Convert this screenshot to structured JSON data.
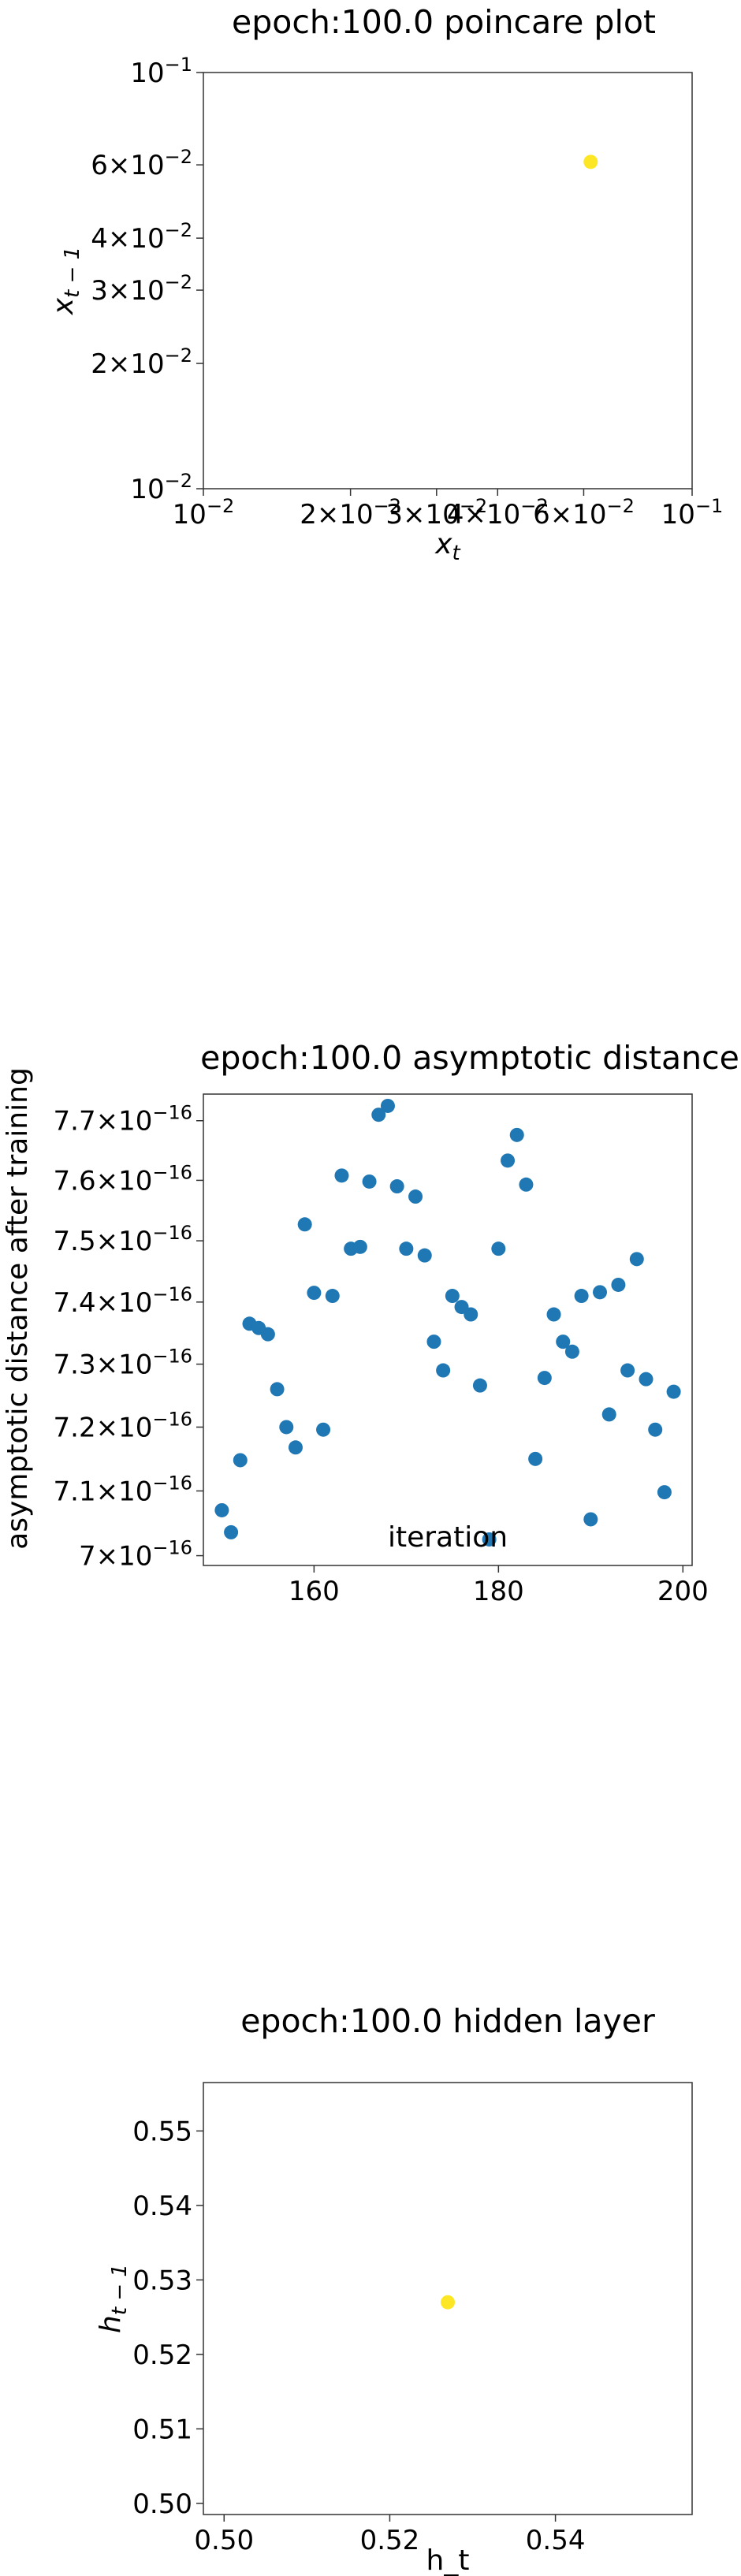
{
  "chart_data": [
    {
      "type": "scatter",
      "title": "epoch:100.0 poincare plot",
      "xlabel": "x_t",
      "ylabel": "x_{t-1}",
      "xscale": "log",
      "yscale": "log",
      "xlim": [
        0.01,
        0.1
      ],
      "ylim": [
        0.01,
        0.1
      ],
      "xticks": [
        {
          "v": 0.01,
          "base": "10",
          "exp": "−2"
        },
        {
          "v": 0.02,
          "base": "2×10",
          "exp": "−2"
        },
        {
          "v": 0.03,
          "base": "3×10",
          "exp": "−2"
        },
        {
          "v": 0.04,
          "base": "4×10",
          "exp": "−2"
        },
        {
          "v": 0.06,
          "base": "6×10",
          "exp": "−2"
        },
        {
          "v": 0.1,
          "base": "10",
          "exp": "−1"
        }
      ],
      "yticks": [
        {
          "v": 0.01,
          "base": "10",
          "exp": "−2"
        },
        {
          "v": 0.02,
          "base": "2×10",
          "exp": "−2"
        },
        {
          "v": 0.03,
          "base": "3×10",
          "exp": "−2"
        },
        {
          "v": 0.04,
          "base": "4×10",
          "exp": "−2"
        },
        {
          "v": 0.06,
          "base": "6×10",
          "exp": "−2"
        },
        {
          "v": 0.1,
          "base": "10",
          "exp": "−1"
        }
      ],
      "points": [
        {
          "x": 0.062,
          "y": 0.061
        }
      ],
      "point_color": "#fde725"
    },
    {
      "type": "scatter",
      "title": "epoch:100.0 asymptotic distance",
      "xlabel": "iteration",
      "ylabel": "asymptotic distance after training",
      "xscale": "linear",
      "yscale": "log",
      "xlim": [
        148,
        201
      ],
      "ylim": [
        6.985e-16,
        7.745e-16
      ],
      "xticks": [
        {
          "v": 160,
          "label": "160"
        },
        {
          "v": 180,
          "label": "180"
        },
        {
          "v": 200,
          "label": "200"
        }
      ],
      "yticks": [
        {
          "v": 7e-16,
          "base": "7×10",
          "exp": "−16"
        },
        {
          "v": 7.1e-16,
          "base": "7.1×10",
          "exp": "−16"
        },
        {
          "v": 7.2e-16,
          "base": "7.2×10",
          "exp": "−16"
        },
        {
          "v": 7.3e-16,
          "base": "7.3×10",
          "exp": "−16"
        },
        {
          "v": 7.4e-16,
          "base": "7.4×10",
          "exp": "−16"
        },
        {
          "v": 7.5e-16,
          "base": "7.5×10",
          "exp": "−16"
        },
        {
          "v": 7.6e-16,
          "base": "7.6×10",
          "exp": "−16"
        },
        {
          "v": 7.7e-16,
          "base": "7.7×10",
          "exp": "−16"
        }
      ],
      "x": [
        150,
        151,
        152,
        153,
        154,
        155,
        156,
        157,
        158,
        159,
        160,
        161,
        162,
        163,
        164,
        165,
        166,
        167,
        168,
        169,
        170,
        171,
        172,
        173,
        174,
        175,
        176,
        177,
        178,
        179,
        180,
        181,
        182,
        183,
        184,
        185,
        186,
        187,
        188,
        189,
        190,
        191,
        192,
        193,
        194,
        195,
        196,
        197,
        198,
        199
      ],
      "y": [
        7.07e-16,
        7.036e-16,
        7.148e-16,
        7.365e-16,
        7.358e-16,
        7.348e-16,
        7.26e-16,
        7.2e-16,
        7.168e-16,
        7.527e-16,
        7.415e-16,
        7.196e-16,
        7.41e-16,
        7.608e-16,
        7.487e-16,
        7.49e-16,
        7.598e-16,
        7.71e-16,
        7.725e-16,
        7.59e-16,
        7.487e-16,
        7.573e-16,
        7.476e-16,
        7.336e-16,
        7.29e-16,
        7.41e-16,
        7.392e-16,
        7.38e-16,
        7.266e-16,
        7.025e-16,
        7.487e-16,
        7.633e-16,
        7.676e-16,
        7.593e-16,
        7.15e-16,
        7.278e-16,
        7.38e-16,
        7.336e-16,
        7.32e-16,
        7.41e-16,
        7.056e-16,
        7.416e-16,
        7.22e-16,
        7.428e-16,
        7.29e-16,
        7.47e-16,
        7.276e-16,
        7.196e-16,
        7.098e-16,
        7.256e-16
      ],
      "point_color": "#1f77b4"
    },
    {
      "type": "scatter",
      "title": "epoch:100.0 hidden layer",
      "xlabel": "h_t",
      "ylabel": "h_{t-1}",
      "xscale": "linear",
      "yscale": "linear",
      "xlim": [
        0.4975,
        0.5565
      ],
      "ylim": [
        0.4985,
        0.5565
      ],
      "xticks": [
        {
          "v": 0.5,
          "label": "0.50"
        },
        {
          "v": 0.52,
          "label": "0.52"
        },
        {
          "v": 0.54,
          "label": "0.54"
        }
      ],
      "yticks": [
        {
          "v": 0.5,
          "label": "0.50"
        },
        {
          "v": 0.51,
          "label": "0.51"
        },
        {
          "v": 0.52,
          "label": "0.52"
        },
        {
          "v": 0.53,
          "label": "0.53"
        },
        {
          "v": 0.54,
          "label": "0.54"
        },
        {
          "v": 0.55,
          "label": "0.55"
        }
      ],
      "points": [
        {
          "x": 0.527,
          "y": 0.527
        }
      ],
      "point_color": "#fde725"
    }
  ]
}
